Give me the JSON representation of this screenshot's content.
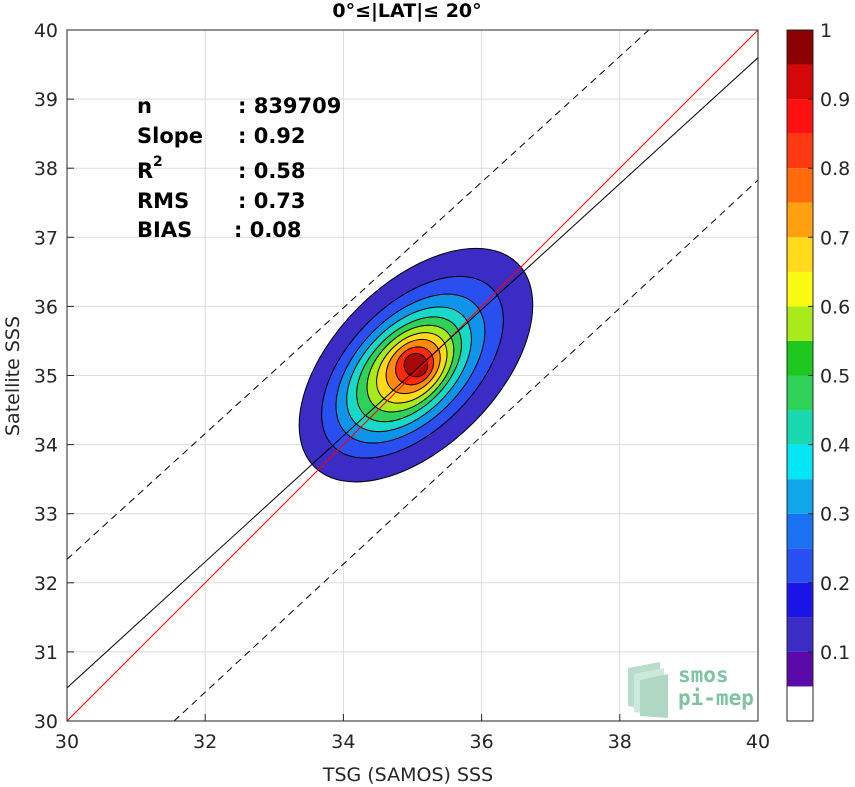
{
  "chart_data": {
    "type": "contour",
    "title": "0°≤|LAT|≤ 20°",
    "xlabel": "TSG (SAMOS) SSS",
    "ylabel": "Satellite SSS",
    "xlim": [
      30,
      40
    ],
    "ylim": [
      30,
      40
    ],
    "xticks": [
      "30",
      "32",
      "34",
      "36",
      "38",
      "40"
    ],
    "yticks": [
      "30",
      "31",
      "32",
      "33",
      "34",
      "35",
      "36",
      "37",
      "38",
      "39",
      "40"
    ],
    "grid": true,
    "stats": [
      {
        "label": "n",
        "value": ": 839709"
      },
      {
        "label": "Slope",
        "value": ": 0.92"
      },
      {
        "label": "R",
        "sup": "2",
        "value": ": 0.58"
      },
      {
        "label": "RMS",
        "value": ": 0.73"
      },
      {
        "label": "BIAS",
        "value": ": 0.08"
      }
    ],
    "lines": {
      "identity": {
        "color": "#ff0000",
        "x": [
          30,
          40
        ],
        "y": [
          30,
          40
        ]
      },
      "fit": {
        "color": "#000000",
        "x": [
          30,
          40
        ],
        "y": [
          30.48,
          39.6
        ]
      },
      "upper_bound": {
        "style": "dashed",
        "x": [
          30,
          38.42
        ],
        "y": [
          32.34,
          40
        ]
      },
      "lower_bound": {
        "style": "dashed",
        "x": [
          31.55,
          40
        ],
        "y": [
          30,
          37.83
        ]
      }
    },
    "density_center": {
      "x": 35.05,
      "y": 35.15
    },
    "density_peak": 1.0,
    "contour_levels": [
      {
        "level": 0.05,
        "color": "#3a2cc4",
        "rx": 2.08,
        "ry": 0.62,
        "ox": 0.0,
        "oy": 0.0
      },
      {
        "level": 0.15,
        "color": "#2a4ff0",
        "rx": 1.62,
        "ry": 0.48,
        "ox": -0.05,
        "oy": -0.03
      },
      {
        "level": 0.25,
        "color": "#0f94ea",
        "rx": 1.32,
        "ry": 0.4,
        "ox": -0.08,
        "oy": -0.05
      },
      {
        "level": 0.35,
        "color": "#19d8c8",
        "rx": 1.1,
        "ry": 0.34,
        "ox": -0.1,
        "oy": -0.06
      },
      {
        "level": 0.45,
        "color": "#2fd158",
        "rx": 0.92,
        "ry": 0.29,
        "ox": -0.1,
        "oy": -0.06
      },
      {
        "level": 0.55,
        "color": "#a8ea1c",
        "rx": 0.75,
        "ry": 0.25,
        "ox": -0.08,
        "oy": -0.05
      },
      {
        "level": 0.65,
        "color": "#ffd91a",
        "rx": 0.6,
        "ry": 0.21,
        "ox": -0.06,
        "oy": -0.04
      },
      {
        "level": 0.75,
        "color": "#ff8c0a",
        "rx": 0.45,
        "ry": 0.17,
        "ox": -0.04,
        "oy": -0.02
      },
      {
        "level": 0.85,
        "color": "#ff2a0a",
        "rx": 0.3,
        "ry": 0.13,
        "ox": -0.02,
        "oy": -0.01
      },
      {
        "level": 0.95,
        "color": "#a80808",
        "rx": 0.17,
        "ry": 0.09,
        "ox": 0.0,
        "oy": 0.0
      }
    ],
    "colorbar": {
      "range": [
        0,
        1
      ],
      "ticks": [
        "0.1",
        "0.2",
        "0.3",
        "0.4",
        "0.5",
        "0.6",
        "0.7",
        "0.8",
        "0.9",
        "1"
      ],
      "bins": [
        {
          "from": 0.0,
          "to": 0.05,
          "color": "#ffffff"
        },
        {
          "from": 0.05,
          "to": 0.1,
          "color": "#5a0aa8"
        },
        {
          "from": 0.1,
          "to": 0.15,
          "color": "#3a2cc4"
        },
        {
          "from": 0.15,
          "to": 0.2,
          "color": "#1c14e6"
        },
        {
          "from": 0.2,
          "to": 0.25,
          "color": "#2a4ff0"
        },
        {
          "from": 0.25,
          "to": 0.3,
          "color": "#1a72f2"
        },
        {
          "from": 0.3,
          "to": 0.35,
          "color": "#0fa6ea"
        },
        {
          "from": 0.35,
          "to": 0.4,
          "color": "#05e6f5"
        },
        {
          "from": 0.4,
          "to": 0.45,
          "color": "#19d8b0"
        },
        {
          "from": 0.45,
          "to": 0.5,
          "color": "#2fd158"
        },
        {
          "from": 0.5,
          "to": 0.55,
          "color": "#1ec81e"
        },
        {
          "from": 0.55,
          "to": 0.6,
          "color": "#a8ea1c"
        },
        {
          "from": 0.6,
          "to": 0.65,
          "color": "#fafa10"
        },
        {
          "from": 0.65,
          "to": 0.7,
          "color": "#ffd91a"
        },
        {
          "from": 0.7,
          "to": 0.75,
          "color": "#ffa010"
        },
        {
          "from": 0.75,
          "to": 0.8,
          "color": "#ff6a0a"
        },
        {
          "from": 0.8,
          "to": 0.85,
          "color": "#ff3a12"
        },
        {
          "from": 0.85,
          "to": 0.9,
          "color": "#ff1010"
        },
        {
          "from": 0.9,
          "to": 0.95,
          "color": "#d40808"
        },
        {
          "from": 0.95,
          "to": 1.0,
          "color": "#8c0000"
        }
      ]
    }
  },
  "logo": {
    "line1": "smos",
    "line2": "pi-mep"
  }
}
